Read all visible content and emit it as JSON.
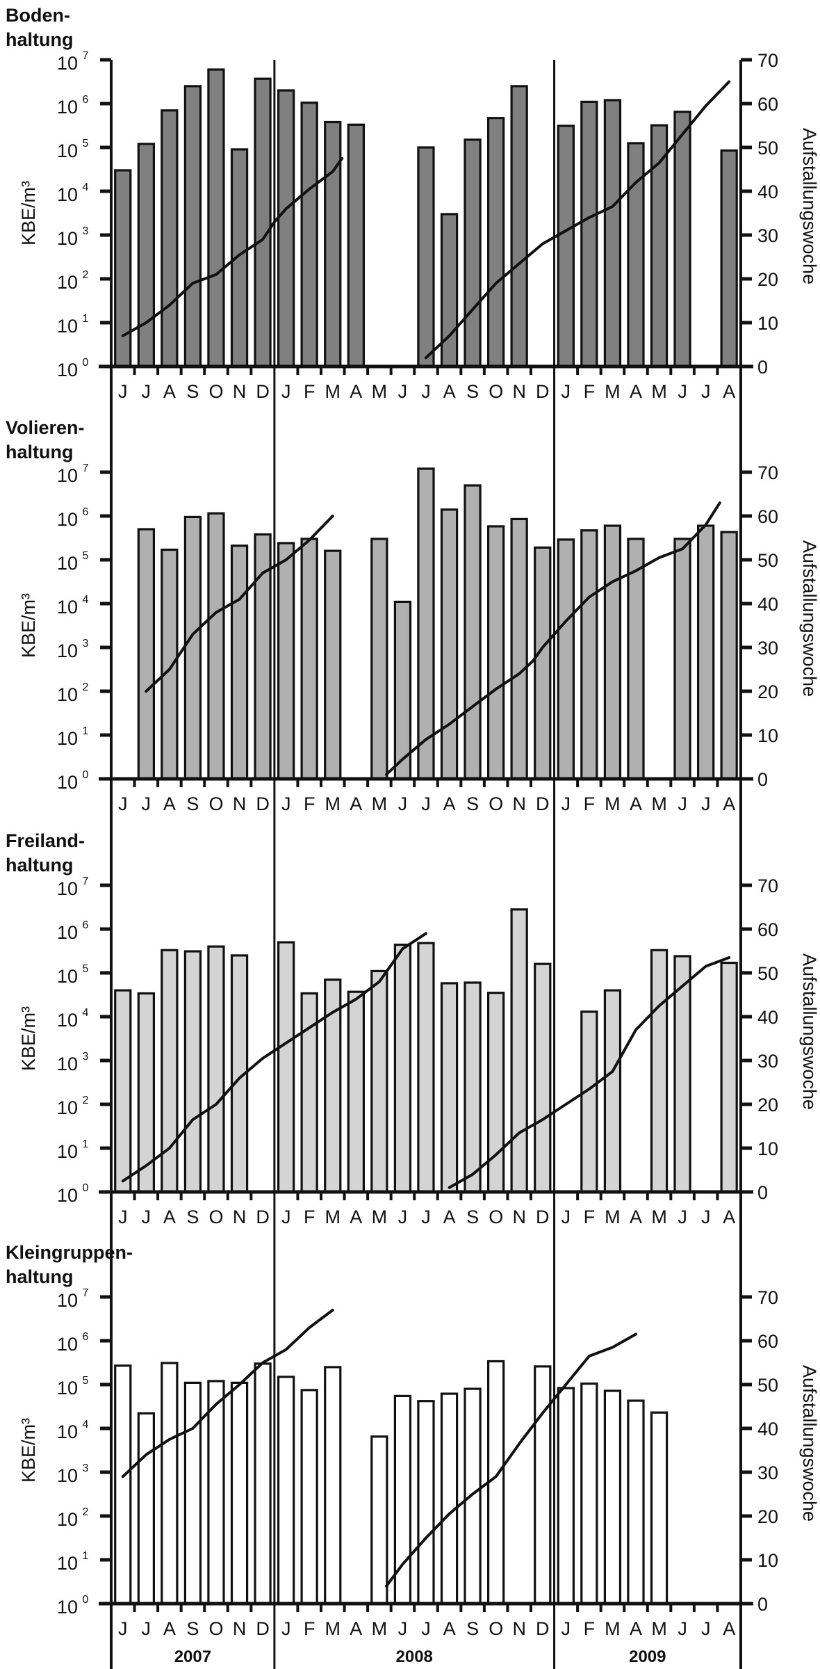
{
  "chart_data": {
    "type": "bar",
    "description": "Four stacked panels; bars = KBE/m³ (log scale, left axis), line = Aufstallungswoche (linear, right axis)",
    "x": [
      "J",
      "J",
      "A",
      "S",
      "O",
      "N",
      "D",
      "J",
      "F",
      "M",
      "A",
      "M",
      "J",
      "J",
      "A",
      "S",
      "O",
      "N",
      "D",
      "J",
      "F",
      "M",
      "A",
      "M",
      "J",
      "J",
      "A"
    ],
    "x_month_labels": [
      "J",
      "J",
      "A",
      "S",
      "O",
      "N",
      "D",
      "J",
      "F",
      "M",
      "A",
      "M",
      "J",
      "J",
      "A",
      "S",
      "O",
      "N",
      "D",
      "J",
      "F",
      "M",
      "A",
      "M",
      "J",
      "J",
      "A"
    ],
    "years": [
      {
        "label": "2007",
        "start_index": 0,
        "end_index": 6
      },
      {
        "label": "2008",
        "start_index": 7,
        "end_index": 18
      },
      {
        "label": "2009",
        "start_index": 19,
        "end_index": 26
      }
    ],
    "ylabel": "KBE/m³",
    "y2label": "Aufstallungswoche",
    "yscale": "log",
    "ylim": [
      1,
      10000000
    ],
    "y_ticks": [
      {
        "base": "10",
        "exp": "0"
      },
      {
        "base": "10",
        "exp": "1"
      },
      {
        "base": "10",
        "exp": "2"
      },
      {
        "base": "10",
        "exp": "3"
      },
      {
        "base": "10",
        "exp": "4"
      },
      {
        "base": "10",
        "exp": "5"
      },
      {
        "base": "10",
        "exp": "6"
      },
      {
        "base": "10",
        "exp": "7"
      }
    ],
    "y2lim": [
      0,
      70
    ],
    "y2_ticks": [
      "0",
      "10",
      "20",
      "30",
      "40",
      "50",
      "60",
      "70"
    ],
    "grid": false,
    "panels": [
      {
        "title_line1": "Boden-",
        "title_line2": "haltung",
        "bar_color": "#808080",
        "values": [
          30000,
          120000,
          700000,
          2500000,
          6000000,
          90000,
          3700000,
          2000000,
          1050000,
          380000,
          330000,
          null,
          null,
          100000,
          3000,
          150000,
          470000,
          2500000,
          null,
          310000,
          1100000,
          1200000,
          125000,
          320000,
          650000,
          null,
          85000
        ],
        "week_lines": [
          [
            [
              0.0,
              7
            ],
            [
              1.0,
              10
            ],
            [
              2.0,
              14
            ],
            [
              3.0,
              19
            ],
            [
              4.0,
              21
            ],
            [
              5.0,
              25.5
            ],
            [
              6.0,
              29
            ],
            [
              6.5,
              33
            ],
            [
              7.0,
              36
            ],
            [
              8.0,
              40.5
            ],
            [
              9.0,
              44.5
            ],
            [
              9.4,
              47.5
            ]
          ],
          [
            [
              13.0,
              2
            ],
            [
              14.0,
              7
            ],
            [
              15.0,
              13
            ],
            [
              16.0,
              19
            ],
            [
              17.0,
              23.5
            ],
            [
              18.0,
              28
            ],
            [
              19.0,
              31
            ],
            [
              20.0,
              34
            ],
            [
              21.0,
              36.5
            ],
            [
              22.0,
              42
            ],
            [
              23.0,
              46.5
            ],
            [
              24.0,
              53
            ],
            [
              25.0,
              59.5
            ],
            [
              26.0,
              65
            ]
          ]
        ]
      },
      {
        "title_line1": "Volieren-",
        "title_line2": "haltung",
        "bar_color": "#b0b0b0",
        "values": [
          null,
          500000,
          170000,
          950000,
          1150000,
          210000,
          380000,
          240000,
          300000,
          160000,
          null,
          300000,
          11000,
          12000000,
          1400000,
          5000000,
          580000,
          850000,
          190000,
          290000,
          470000,
          600000,
          300000,
          null,
          300000,
          600000,
          430000
        ],
        "week_lines": [
          [
            [
              1.0,
              20
            ],
            [
              2.0,
              25
            ],
            [
              3.0,
              33
            ],
            [
              4.0,
              38
            ],
            [
              5.0,
              41
            ],
            [
              6.0,
              47
            ],
            [
              7.0,
              50
            ],
            [
              8.0,
              54.5
            ],
            [
              9.0,
              60
            ]
          ],
          [
            [
              11.3,
              1
            ],
            [
              12.0,
              4.5
            ],
            [
              13.0,
              9
            ],
            [
              14.0,
              12.5
            ],
            [
              15.0,
              16.5
            ],
            [
              16.0,
              20.5
            ],
            [
              17.0,
              24
            ],
            [
              17.6,
              27
            ],
            [
              18.0,
              30
            ],
            [
              19.0,
              36
            ],
            [
              20.0,
              41.5
            ],
            [
              21.0,
              45
            ],
            [
              22.0,
              47.5
            ],
            [
              23.0,
              50.5
            ],
            [
              24.0,
              52.5
            ],
            [
              25.0,
              58
            ],
            [
              25.6,
              63
            ]
          ]
        ]
      },
      {
        "title_line1": "Freiland-",
        "title_line2": "haltung",
        "bar_color": "#d4d4d4",
        "values": [
          40000,
          34000,
          330000,
          310000,
          400000,
          250000,
          null,
          500000,
          34000,
          70000,
          37000,
          110000,
          440000,
          480000,
          58000,
          60000,
          35000,
          2800000,
          160000,
          null,
          13000,
          40000,
          null,
          330000,
          240000,
          null,
          170000
        ],
        "week_lines": [
          [
            [
              0.0,
              2.5
            ],
            [
              1.0,
              6
            ],
            [
              2.0,
              10
            ],
            [
              3.0,
              16.5
            ],
            [
              4.0,
              20
            ],
            [
              5.0,
              26
            ],
            [
              6.0,
              30.5
            ],
            [
              7.0,
              34
            ],
            [
              8.0,
              37.5
            ],
            [
              9.0,
              41
            ],
            [
              10.0,
              44
            ],
            [
              11.0,
              48
            ],
            [
              12.0,
              55.5
            ],
            [
              13.0,
              59
            ]
          ],
          [
            [
              14.0,
              1
            ],
            [
              15.0,
              4
            ],
            [
              16.0,
              8.5
            ],
            [
              17.0,
              13.5
            ],
            [
              18.0,
              16.5
            ],
            [
              19.0,
              20
            ],
            [
              20.0,
              23.5
            ],
            [
              21.0,
              27.5
            ],
            [
              22.0,
              37
            ],
            [
              23.0,
              42.5
            ],
            [
              24.0,
              47
            ],
            [
              25.0,
              51.5
            ],
            [
              26.0,
              53.5
            ]
          ]
        ]
      },
      {
        "title_line1": "Kleingruppen-",
        "title_line2": "haltung",
        "bar_color": "#ffffff",
        "values": [
          270000,
          22000,
          310000,
          110000,
          120000,
          110000,
          300000,
          150000,
          75000,
          250000,
          null,
          6500,
          55000,
          42000,
          62000,
          80000,
          340000,
          null,
          260000,
          83000,
          105000,
          72000,
          43000,
          23000,
          null,
          null,
          null
        ],
        "week_lines": [
          [
            [
              0.0,
              29
            ],
            [
              1.0,
              34
            ],
            [
              2.0,
              37.5
            ],
            [
              3.0,
              40
            ],
            [
              4.0,
              45.5
            ],
            [
              5.0,
              50
            ],
            [
              6.0,
              55
            ],
            [
              7.0,
              58
            ],
            [
              8.0,
              63
            ],
            [
              9.0,
              67
            ]
          ],
          [
            [
              11.3,
              4
            ],
            [
              12.0,
              9
            ],
            [
              13.0,
              15
            ],
            [
              14.0,
              20.5
            ],
            [
              15.0,
              25
            ],
            [
              16.0,
              29
            ],
            [
              17.0,
              36.5
            ],
            [
              18.0,
              43.5
            ],
            [
              19.0,
              50
            ],
            [
              20.0,
              56.5
            ],
            [
              21.0,
              58.5
            ],
            [
              22.0,
              61.5
            ]
          ]
        ]
      }
    ]
  }
}
